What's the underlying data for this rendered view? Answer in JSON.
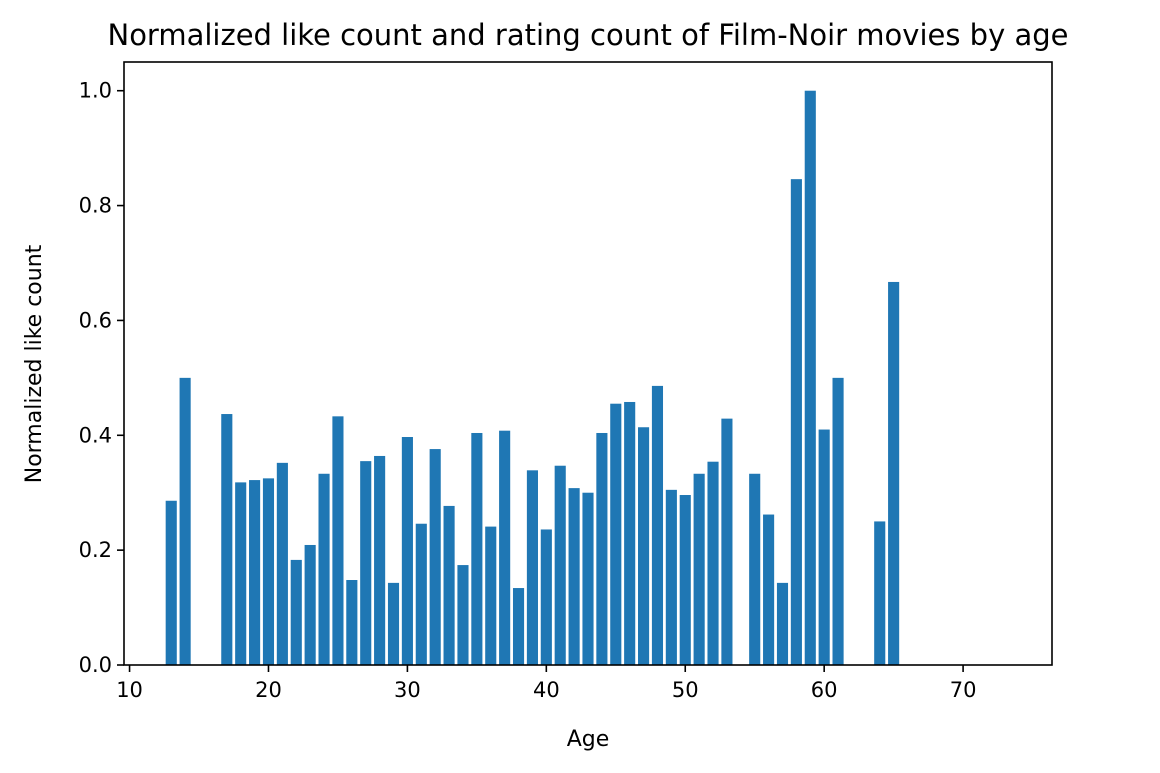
{
  "chart_data": {
    "type": "bar",
    "title": "Normalized like count and rating count of Film-Noir movies by age",
    "xlabel": "Age",
    "ylabel": "Normalized like count",
    "xlim": [
      9.6,
      76.4
    ],
    "ylim": [
      0,
      1.05
    ],
    "xticks": [
      10,
      20,
      30,
      40,
      50,
      60,
      70
    ],
    "yticks": [
      0.0,
      0.2,
      0.4,
      0.6,
      0.8,
      1.0
    ],
    "grid": false,
    "bar_color": "#1f77b4",
    "x": [
      13,
      14,
      17,
      18,
      19,
      20,
      21,
      22,
      23,
      24,
      25,
      26,
      27,
      28,
      29,
      30,
      31,
      32,
      33,
      34,
      35,
      36,
      37,
      38,
      39,
      40,
      41,
      42,
      43,
      44,
      45,
      46,
      47,
      48,
      49,
      50,
      51,
      52,
      53,
      55,
      56,
      57,
      58,
      59,
      60,
      61,
      64,
      65
    ],
    "values": [
      0.286,
      0.5,
      0.437,
      0.318,
      0.322,
      0.325,
      0.352,
      0.183,
      0.209,
      0.333,
      0.433,
      0.148,
      0.355,
      0.364,
      0.143,
      0.397,
      0.246,
      0.376,
      0.277,
      0.174,
      0.404,
      0.241,
      0.408,
      0.134,
      0.339,
      0.236,
      0.347,
      0.308,
      0.3,
      0.404,
      0.455,
      0.458,
      0.414,
      0.486,
      0.305,
      0.296,
      0.333,
      0.354,
      0.429,
      0.333,
      0.262,
      0.143,
      0.846,
      1.0,
      0.41,
      0.5,
      0.25,
      0.667
    ]
  }
}
